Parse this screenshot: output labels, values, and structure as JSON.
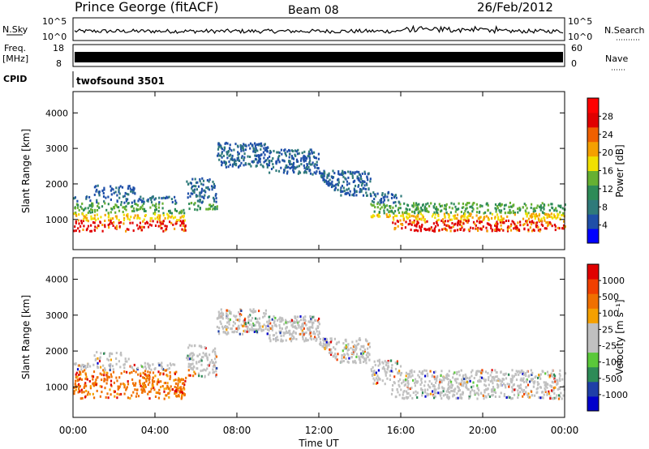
{
  "header": {
    "station": "Prince George (fitACF)",
    "beam": "Beam 08",
    "date": "26/Feb/2012"
  },
  "strips": {
    "nsky_label": "N.Sky",
    "nsky_ticks": [
      "10^5",
      "10^0"
    ],
    "nsearch_label": "N.Search",
    "nsearch_ticks": [
      "10^5",
      "10^0"
    ],
    "freq_label": "Freq.",
    "freq_unit": "[MHz]",
    "freq_ticks": [
      "18",
      "8"
    ],
    "nave_label": "Nave",
    "nave_ticks": [
      "60",
      "0"
    ],
    "cpid_label": "CPID",
    "cpid_value": "twofsound 3501"
  },
  "chart_data": [
    {
      "type": "heatmap",
      "name": "power",
      "ylabel": "Slant Range [km]",
      "ylim": [
        150,
        4600
      ],
      "yticks": [
        1000,
        2000,
        3000,
        4000
      ],
      "xlim": [
        0,
        24
      ],
      "colorbar": {
        "label": "Power [dB]",
        "ticks": [
          "28",
          "24",
          "20",
          "16",
          "12",
          "8",
          "4"
        ],
        "colors": [
          "#0000ff",
          "#1f4fa8",
          "#2f7a7a",
          "#2e8b57",
          "#66b032",
          "#f0e000",
          "#f5a000",
          "#f06000",
          "#e00000",
          "#ff0000"
        ]
      }
    },
    {
      "type": "heatmap",
      "name": "velocity",
      "ylabel": "Slant Range [km]",
      "ylim": [
        150,
        4600
      ],
      "yticks": [
        1000,
        2000,
        3000,
        4000
      ],
      "xlim": [
        0,
        24
      ],
      "colorbar": {
        "label": "Velocity [m s⁻¹]",
        "ticks": [
          "1000",
          "500",
          "100",
          "25",
          "-25",
          "-100",
          "-500",
          "-1000"
        ],
        "colors": [
          "#0000cc",
          "#1f3fa8",
          "#2e8b57",
          "#5ac83a",
          "#c0c0c0",
          "#c0c0c0",
          "#f5a000",
          "#f07000",
          "#f04000",
          "#e00000"
        ]
      }
    }
  ],
  "x_axis": {
    "ticks": [
      "00:00",
      "04:00",
      "08:00",
      "12:00",
      "16:00",
      "20:00",
      "00:00"
    ],
    "label": "Time UT"
  }
}
